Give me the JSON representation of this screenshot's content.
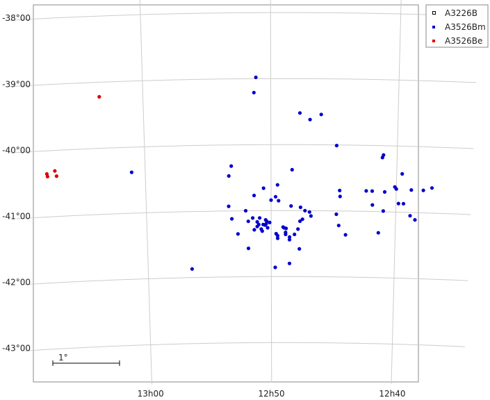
{
  "chart_data": {
    "type": "scatter",
    "title": "",
    "xlabel": "",
    "ylabel": "",
    "grid": true,
    "legend_position": "top-right outside",
    "xlim_deg": [
      196.9,
      189.2
    ],
    "ylim_deg": [
      -43.3,
      -37.6
    ],
    "x_ticks": [
      {
        "deg": 195.0,
        "label": "13h00"
      },
      {
        "deg": 192.5,
        "label": "12h50"
      },
      {
        "deg": 190.0,
        "label": "12h40"
      }
    ],
    "y_ticks": [
      {
        "deg": -38,
        "label": "-38°00"
      },
      {
        "deg": -39,
        "label": "-39°00"
      },
      {
        "deg": -40,
        "label": "-40°00"
      },
      {
        "deg": -41,
        "label": "-41°00"
      },
      {
        "deg": -42,
        "label": "-42°00"
      },
      {
        "deg": -43,
        "label": "-43°00"
      }
    ],
    "scale_bar": {
      "label": "1°"
    },
    "series": [
      {
        "name": "A3226B",
        "color": "#000000",
        "marker": "hollow-square",
        "points": []
      },
      {
        "name": "A3526Bm",
        "color": "#0000cc",
        "marker": "dot",
        "points": [
          [
            192.79,
            -38.98
          ],
          [
            192.83,
            -39.21
          ],
          [
            191.93,
            -39.52
          ],
          [
            191.73,
            -39.62
          ],
          [
            191.51,
            -39.54
          ],
          [
            191.2,
            -40.01
          ],
          [
            195.27,
            -40.38
          ],
          [
            193.29,
            -40.32
          ],
          [
            193.34,
            -40.47
          ],
          [
            192.65,
            -40.66
          ],
          [
            192.84,
            -40.77
          ],
          [
            192.37,
            -40.61
          ],
          [
            192.41,
            -40.79
          ],
          [
            192.5,
            -40.84
          ],
          [
            192.08,
            -40.38
          ],
          [
            191.13,
            -40.69
          ],
          [
            191.12,
            -40.78
          ],
          [
            190.48,
            -40.69
          ],
          [
            190.23,
            -40.7
          ],
          [
            190.6,
            -40.69
          ],
          [
            190.47,
            -40.9
          ],
          [
            190.03,
            -40.62
          ],
          [
            190.0,
            -40.65
          ],
          [
            189.89,
            -40.42
          ],
          [
            190.27,
            -40.14
          ],
          [
            190.29,
            -40.18
          ],
          [
            189.95,
            -40.87
          ],
          [
            189.85,
            -40.87
          ],
          [
            189.46,
            -40.66
          ],
          [
            189.7,
            -40.66
          ],
          [
            189.29,
            -40.62
          ],
          [
            189.71,
            -41.05
          ],
          [
            189.61,
            -41.11
          ],
          [
            190.25,
            -40.99
          ],
          [
            190.34,
            -41.32
          ],
          [
            193.35,
            -40.93
          ],
          [
            193.29,
            -41.12
          ],
          [
            193.01,
            -41.0
          ],
          [
            192.96,
            -41.16
          ],
          [
            193.17,
            -41.35
          ],
          [
            192.84,
            -41.29
          ],
          [
            192.87,
            -41.11
          ],
          [
            192.78,
            -41.24
          ],
          [
            192.78,
            -41.17
          ],
          [
            192.73,
            -41.11
          ],
          [
            192.7,
            -41.28
          ],
          [
            192.75,
            -41.21
          ],
          [
            192.68,
            -41.31
          ],
          [
            192.62,
            -41.22
          ],
          [
            192.61,
            -41.14
          ],
          [
            192.6,
            -41.2
          ],
          [
            192.57,
            -41.26
          ],
          [
            192.66,
            -41.21
          ],
          [
            192.59,
            -41.16
          ],
          [
            192.53,
            -41.18
          ],
          [
            192.4,
            -41.35
          ],
          [
            192.37,
            -41.42
          ],
          [
            192.37,
            -41.38
          ],
          [
            192.26,
            -41.25
          ],
          [
            192.21,
            -41.33
          ],
          [
            192.2,
            -41.27
          ],
          [
            192.21,
            -41.36
          ],
          [
            192.24,
            -41.26
          ],
          [
            192.13,
            -41.4
          ],
          [
            192.13,
            -41.44
          ],
          [
            192.03,
            -41.36
          ],
          [
            191.96,
            -41.28
          ],
          [
            191.92,
            -41.16
          ],
          [
            191.87,
            -41.13
          ],
          [
            191.82,
            -41.0
          ],
          [
            191.91,
            -40.95
          ],
          [
            192.1,
            -40.93
          ],
          [
            192.35,
            -40.85
          ],
          [
            191.73,
            -41.02
          ],
          [
            191.7,
            -41.08
          ],
          [
            191.19,
            -41.05
          ],
          [
            191.14,
            -41.22
          ],
          [
            191.0,
            -41.36
          ],
          [
            192.96,
            -41.57
          ],
          [
            191.93,
            -41.58
          ],
          [
            192.42,
            -41.86
          ],
          [
            192.13,
            -41.8
          ],
          [
            194.11,
            -41.87
          ]
        ]
      },
      {
        "name": "A3526Be",
        "color": "#dd0000",
        "marker": "dot",
        "points": [
          [
            195.85,
            -39.22
          ],
          [
            196.95,
            -40.35
          ],
          [
            196.94,
            -40.39
          ],
          [
            196.79,
            -40.31
          ],
          [
            196.76,
            -40.39
          ]
        ]
      }
    ]
  }
}
